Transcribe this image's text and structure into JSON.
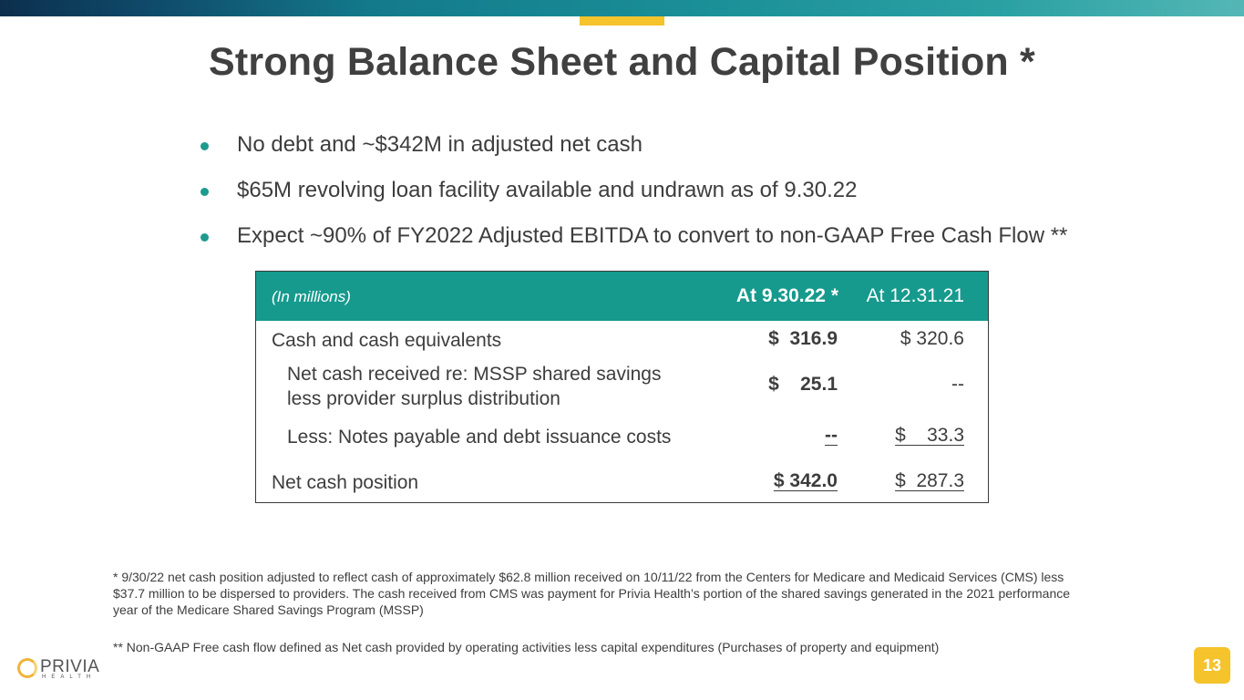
{
  "slide": {
    "title": "Strong Balance Sheet and Capital Position *",
    "page_number": "13"
  },
  "bullets": [
    "No debt and ~$342M in adjusted net cash",
    "$65M revolving loan facility available and undrawn as of 9.30.22",
    "Expect ~90% of FY2022 Adjusted EBITDA to convert to non-GAAP Free Cash Flow **"
  ],
  "table": {
    "header": {
      "units": "(In millions)",
      "col1": "At 9.30.22 *",
      "col2": "At 12.31.21"
    },
    "rows": [
      {
        "label": "Cash and cash equivalents",
        "v1": "$  316.9",
        "v2": "$ 320.6"
      },
      {
        "label_line1": "Net cash received re: MSSP shared savings",
        "label_line2": "less provider surplus distribution",
        "v1": "$    25.1",
        "v2": "--"
      },
      {
        "label": "Less: Notes payable and debt issuance costs",
        "v1": "--",
        "v2": "$    33.3"
      },
      {
        "label": "Net cash position",
        "v1": "$ 342.0",
        "v2": "$  287.3"
      }
    ]
  },
  "footnotes": {
    "note1_line1": "* 9/30/22 net cash position adjusted to reflect cash of approximately $62.8 million received on 10/11/22 from the Centers for Medicare and Medicaid Services (CMS) less",
    "note1_line2": "$37.7 million to be dispersed to providers. The cash received from CMS was payment for Privia Health’s portion of the shared savings generated in the 2021 performance",
    "note1_line3": "year of the Medicare Shared Savings Program (MSSP)",
    "note2": "** Non-GAAP Free cash flow defined as Net cash provided by operating activities less capital expenditures (Purchases of property and equipment)"
  },
  "logo": {
    "name": "PRIVIA",
    "sub": "HEALTH"
  },
  "colors": {
    "teal": "#169a8d",
    "accent_yellow": "#f5c32c",
    "text": "#3d3d3d"
  }
}
